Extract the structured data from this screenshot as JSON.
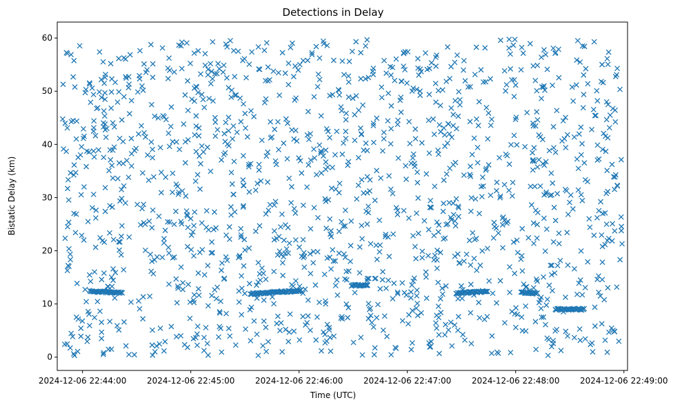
{
  "chart_data": {
    "type": "scatter",
    "title": "Detections in Delay",
    "xlabel": "Time (UTC)",
    "ylabel": "Bistatic Delay (km)",
    "marker": "x",
    "color": "#1f77b4",
    "grid": false,
    "legend": "none",
    "x_range": [
      "2024-12-06 22:43:46",
      "2024-12-06 22:49:02"
    ],
    "ylim": [
      -2.5,
      63
    ],
    "x_ticks": [
      "2024-12-06 22:44:00",
      "2024-12-06 22:45:00",
      "2024-12-06 22:46:00",
      "2024-12-06 22:47:00",
      "2024-12-06 22:48:00",
      "2024-12-06 22:49:00"
    ],
    "y_ticks": [
      0,
      10,
      20,
      30,
      40,
      50,
      60
    ],
    "data_window": [
      "2024-12-06 22:43:49",
      "2024-12-06 22:48:59"
    ],
    "tracks": [
      {
        "start": "2024-12-06 22:44:04",
        "end": "2024-12-06 22:44:22",
        "delay_start": 12.4,
        "delay_end": 12.1
      },
      {
        "start": "2024-12-06 22:45:33",
        "end": "2024-12-06 22:46:01",
        "delay_start": 11.9,
        "delay_end": 12.5
      },
      {
        "start": "2024-12-06 22:46:29",
        "end": "2024-12-06 22:46:38",
        "delay_start": 13.5,
        "delay_end": 13.5
      },
      {
        "start": "2024-12-06 22:47:27",
        "end": "2024-12-06 22:47:44",
        "delay_start": 12.0,
        "delay_end": 12.4
      },
      {
        "start": "2024-12-06 22:48:03",
        "end": "2024-12-06 22:48:12",
        "delay_start": 12.2,
        "delay_end": 12.0
      },
      {
        "start": "2024-12-06 22:48:22",
        "end": "2024-12-06 22:48:38",
        "delay_start": 9.0,
        "delay_end": 9.0
      }
    ]
  }
}
